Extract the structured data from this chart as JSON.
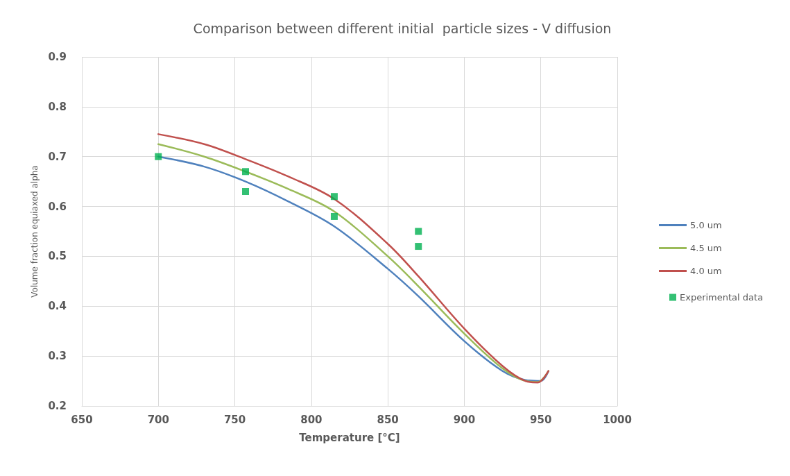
{
  "chart_data": {
    "type": "line",
    "title": "Comparison between different initial  particle sizes - V diffusion",
    "xlabel": "Temperature [°C]",
    "ylabel": "Volume fraction equiaxed alpha",
    "xlim": [
      650,
      1000
    ],
    "xticks": [
      650,
      700,
      750,
      800,
      850,
      900,
      950,
      1000
    ],
    "ylim": [
      0.2,
      0.9
    ],
    "yticks": [
      0.2,
      0.3,
      0.4,
      0.5,
      0.6,
      0.7,
      0.8,
      0.9
    ],
    "grid": true,
    "legend": "right",
    "marker": "none",
    "line_style": "solid",
    "series": [
      {
        "name": "5.0 um",
        "color": "#4f81bd",
        "x": [
          700,
          730,
          757,
          785,
          815,
          850,
          870,
          900,
          925,
          940,
          950,
          955
        ],
        "values": [
          0.7,
          0.68,
          0.65,
          0.61,
          0.56,
          0.475,
          0.42,
          0.33,
          0.27,
          0.252,
          0.25,
          0.27
        ]
      },
      {
        "name": "4.5 um",
        "color": "#9bbb59",
        "x": [
          700,
          730,
          757,
          785,
          815,
          850,
          870,
          900,
          925,
          940,
          948,
          955
        ],
        "values": [
          0.725,
          0.7,
          0.67,
          0.635,
          0.59,
          0.5,
          0.44,
          0.345,
          0.275,
          0.25,
          0.248,
          0.27
        ]
      },
      {
        "name": "4.0 um",
        "color": "#c0504d",
        "x": [
          700,
          730,
          757,
          785,
          815,
          850,
          870,
          900,
          925,
          940,
          948,
          955
        ],
        "values": [
          0.745,
          0.725,
          0.695,
          0.66,
          0.615,
          0.525,
          0.46,
          0.355,
          0.28,
          0.25,
          0.247,
          0.27
        ]
      },
      {
        "name": "Experimental data",
        "type": "scatter",
        "marker": "square",
        "color": "#00b050",
        "x": [
          700,
          757,
          757,
          815,
          815,
          870,
          870
        ],
        "values": [
          0.7,
          0.67,
          0.63,
          0.62,
          0.58,
          0.55,
          0.52
        ]
      }
    ]
  }
}
